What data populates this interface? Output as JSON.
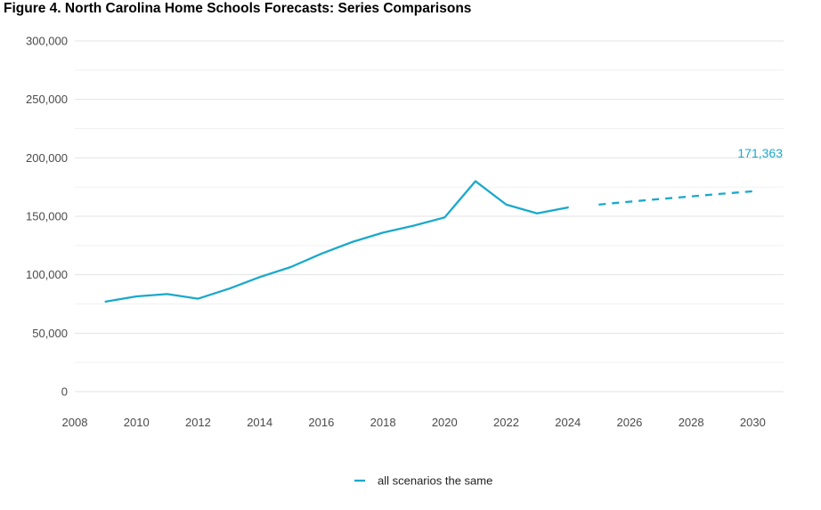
{
  "chart_data": {
    "type": "line",
    "title": "Figure 4. North Carolina Home Schools Forecasts: Series Comparisons",
    "xlabel": "",
    "ylabel": "",
    "xlim": [
      2008,
      2031
    ],
    "ylim": [
      0,
      300000
    ],
    "x_ticks": [
      "2008",
      "2010",
      "2012",
      "2014",
      "2016",
      "2018",
      "2020",
      "2022",
      "2024",
      "2026",
      "2028",
      "2030"
    ],
    "y_ticks": [
      "0",
      "50,000",
      "100,000",
      "150,000",
      "200,000",
      "250,000",
      "300,000"
    ],
    "grid": true,
    "legend_position": "bottom",
    "series": [
      {
        "name": "all scenarios the same",
        "color": "#1aa9cc",
        "actual": {
          "x": [
            2009,
            2010,
            2011,
            2012,
            2013,
            2014,
            2015,
            2016,
            2017,
            2018,
            2019,
            2020,
            2021,
            2022,
            2023,
            2024
          ],
          "y": [
            77000,
            81500,
            83500,
            79500,
            88000,
            98000,
            106500,
            118000,
            128000,
            136000,
            142000,
            149000,
            180000,
            160000,
            152500,
            157500
          ]
        },
        "forecast": {
          "x": [
            2025,
            2026,
            2027,
            2028,
            2029,
            2030
          ],
          "y": [
            160000,
            162500,
            164800,
            167000,
            169300,
            171363
          ]
        }
      }
    ],
    "end_label": "171,363"
  }
}
